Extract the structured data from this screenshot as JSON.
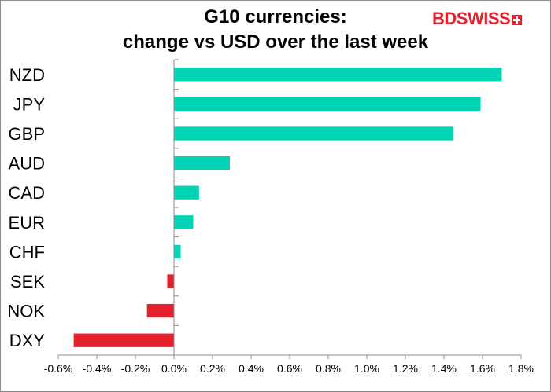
{
  "title_line1": "G10 currencies:",
  "title_line2": "change vs USD over the last week",
  "logo": {
    "bd": "BD",
    "swiss": "SWISS"
  },
  "colors": {
    "positive": "#00d4b4",
    "negative": "#e5202e",
    "axis": "#8c8c8c"
  },
  "chart_data": {
    "type": "bar",
    "orientation": "horizontal",
    "categories": [
      "NZD",
      "JPY",
      "GBP",
      "AUD",
      "CAD",
      "EUR",
      "CHF",
      "SEK",
      "NOK",
      "DXY"
    ],
    "values": [
      1.7,
      1.59,
      1.45,
      0.29,
      0.13,
      0.1,
      0.035,
      -0.035,
      -0.14,
      -0.52
    ],
    "unit": "%",
    "xlim": [
      -0.6,
      1.8
    ],
    "xticks": [
      -0.6,
      -0.4,
      -0.2,
      0.0,
      0.2,
      0.4,
      0.6,
      0.8,
      1.0,
      1.2,
      1.4,
      1.6,
      1.8
    ],
    "xtick_labels": [
      "-0.6%",
      "-0.4%",
      "-0.2%",
      "0.0%",
      "0.2%",
      "0.4%",
      "0.6%",
      "0.8%",
      "1.0%",
      "1.2%",
      "1.4%",
      "1.6%",
      "1.8%"
    ],
    "grid": false,
    "legend": "none"
  }
}
